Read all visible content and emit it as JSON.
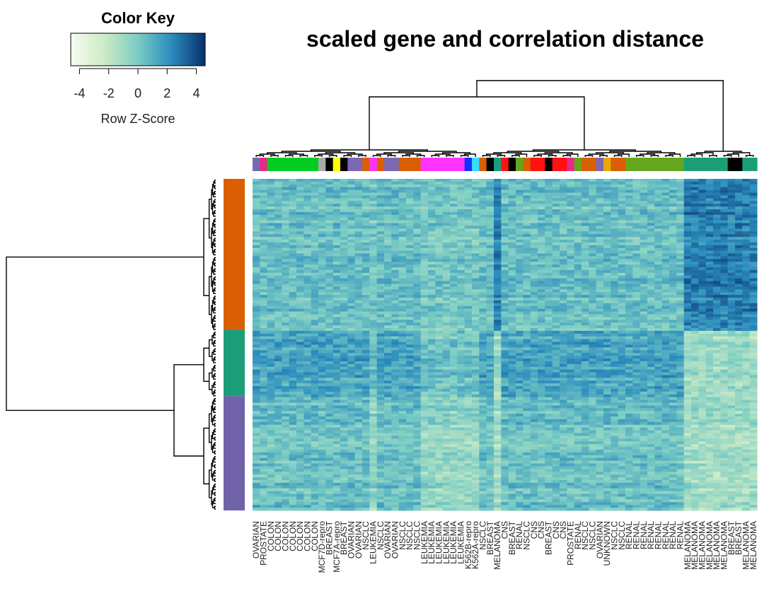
{
  "chart_data": {
    "type": "heatmap",
    "title": "scaled gene and correlation distance",
    "color_key": {
      "title": "Color Key",
      "xlabel": "Row Z-Score",
      "ticks": [
        "-4",
        "-2",
        "0",
        "2",
        "4"
      ],
      "tick_values": [
        -4,
        -2,
        0,
        2,
        4
      ],
      "range": [
        -4.6,
        4.6
      ],
      "colors": [
        "#f7fcf0",
        "#ccebc5",
        "#7bccc4",
        "#2b8cbe",
        "#08306b"
      ]
    },
    "columns": [
      "OVARIAN",
      "PROSTATE",
      "COLON",
      "COLON",
      "COLON",
      "COLON",
      "COLON",
      "COLON",
      "COLON",
      "MCF7D-repro",
      "BREAST",
      "MCF7A-repro",
      "BREAST",
      "OVARIAN",
      "OVARIAN",
      "NSCLC",
      "LEUKEMIA",
      "NSCLC",
      "OVARIAN",
      "OVARIAN",
      "NSCLC",
      "NSCLC",
      "NSCLC",
      "LEUKEMIA",
      "LEUKEMIA",
      "LEUKEMIA",
      "LEUKEMIA",
      "LEUKEMIA",
      "LEUKEMIA",
      "K562B-repro",
      "K562A-repro",
      "NSCLC",
      "BREAST",
      "MELANOMA",
      "CNS",
      "BREAST",
      "RENAL",
      "NSCLC",
      "CNS",
      "CNS",
      "BREAST",
      "CNS",
      "CNS",
      "PROSTATE",
      "RENAL",
      "NSCLC",
      "NSCLC",
      "OVARIAN",
      "UNKNOWN",
      "NSCLC",
      "NSCLC",
      "RENAL",
      "RENAL",
      "RENAL",
      "RENAL",
      "RENAL",
      "RENAL",
      "RENAL",
      "RENAL",
      "MELANOMA",
      "MELANOMA",
      "MELANOMA",
      "MELANOMA",
      "MELANOMA",
      "MELANOMA",
      "BREAST",
      "BREAST",
      "MELANOMA",
      "MELANOMA"
    ],
    "column_colors": {
      "OVARIAN": "#7b68b3",
      "PROSTATE": "#e7298a",
      "COLON": "#00cc22",
      "MCF7D-repro": "#aaaaaa",
      "BREAST": "#000000",
      "MCF7A-repro": "#ffff00",
      "NSCLC": "#d95f02",
      "LEUKEMIA": "#ff33ff",
      "K562B-repro": "#1133ff",
      "K562A-repro": "#33ddff",
      "MELANOMA": "#1b9e77",
      "CNS": "#ff1111",
      "RENAL": "#66a61e",
      "UNKNOWN": "#e6ab02"
    },
    "row_groups": [
      {
        "color": "#d95f02",
        "fraction": 0.455
      },
      {
        "color": "#1b9e77",
        "fraction": 0.2
      },
      {
        "color": "#7063a9",
        "fraction": 0.345
      }
    ],
    "n_rows": 120
  }
}
